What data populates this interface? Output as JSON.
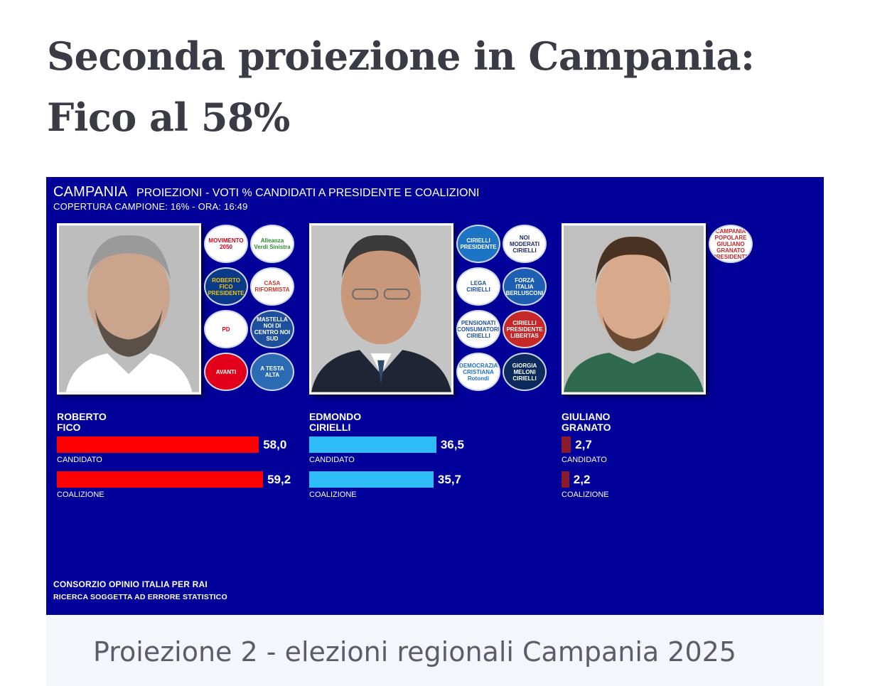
{
  "headline": "Seconda proiezione in Campania: Fico al 58%",
  "panel": {
    "region": "CAMPANIA",
    "subtitle": "PROIEZIONI - VOTI % CANDIDATI A PRESIDENTE E COALIZIONI",
    "coverage": "COPERTURA CAMPIONE: 16%  - ORA: 16:49",
    "footer_line1": "CONSORZIO OPINIO ITALIA PER RAI",
    "footer_line2": "RICERCA SOGGETTA AD ERRORE STATISTICO"
  },
  "candidates": [
    {
      "first": "ROBERTO",
      "last": "FICO",
      "candidato_value": "58,0",
      "candidato_pct": 58.0,
      "coalizione_value": "59,2",
      "coalizione_pct": 59.2,
      "color": "#ff0000",
      "logos": [
        "MOVIMENTO 2050",
        "Alleanza Verdi Sinistra",
        "ROBERTO FICO PRESIDENTE",
        "CASA RIFORMISTA",
        "PD",
        "MASTELLA NOI DI CENTRO NOI SUD",
        "AVANTI",
        "A TESTA ALTA"
      ]
    },
    {
      "first": "EDMONDO",
      "last": "CIRIELLI",
      "candidato_value": "36,5",
      "candidato_pct": 36.5,
      "coalizione_value": "35,7",
      "coalizione_pct": 35.7,
      "color": "#2ebcf7",
      "logos": [
        "CIRIELLI PRESIDENTE",
        "NOI MODERATI CIRIELLI",
        "LEGA CIRIELLI",
        "FORZA ITALIA BERLUSCONI",
        "PENSIONATI CONSUMATORI CIRIELLI",
        "CIRIELLI PRESIDENTE LIBERTAS",
        "DEMOCRAZIA CRISTIANA Rotondi",
        "GIORGIA MELONI CIRIELLI"
      ]
    },
    {
      "first": "GIULIANO",
      "last": "GRANATO",
      "candidato_value": "2,7",
      "candidato_pct": 2.7,
      "coalizione_value": "2,2",
      "coalizione_pct": 2.2,
      "color": "#8b1a2a",
      "logos": [
        "CAMPANIA POPOLARE GIULIANO GRANATO PRESIDENTE"
      ]
    }
  ],
  "labels": {
    "candidato": "CANDIDATO",
    "coalizione": "COALIZIONE"
  },
  "caption": "Proiezione 2 - elezioni regionali Campania 2025"
}
